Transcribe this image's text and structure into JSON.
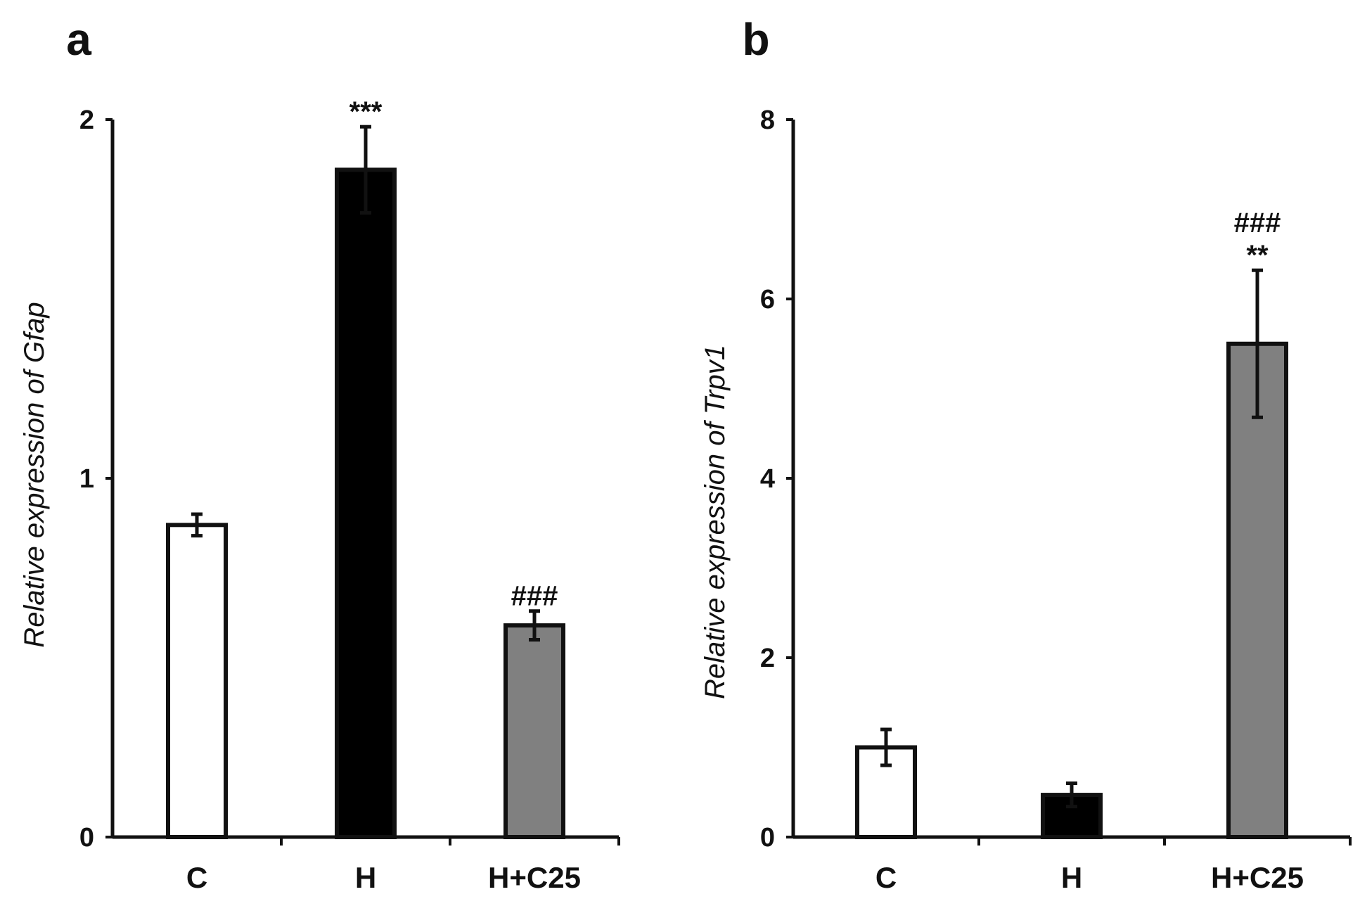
{
  "chart_data": [
    {
      "type": "bar",
      "panel_label": "a",
      "categories": [
        "C",
        "H",
        "H+C25"
      ],
      "values": [
        0.87,
        1.86,
        0.59
      ],
      "errors": [
        0.03,
        0.12,
        0.04
      ],
      "significance": [
        "",
        "***",
        "###"
      ],
      "bar_colors": [
        "#ffffff",
        "#000000",
        "#808080"
      ],
      "ylabel": "Relative expression of Gfap",
      "ylim": [
        0,
        2
      ],
      "yticks": [
        0,
        1,
        2
      ],
      "ytick_labels": [
        "0",
        "1",
        "2"
      ],
      "grid": false,
      "legend": "none"
    },
    {
      "type": "bar",
      "panel_label": "b",
      "categories": [
        "C",
        "H",
        "H+C25"
      ],
      "values": [
        1.0,
        0.47,
        5.5
      ],
      "errors": [
        0.2,
        0.13,
        0.82
      ],
      "significance": [
        "",
        "",
        "###\n**"
      ],
      "bar_colors": [
        "#ffffff",
        "#000000",
        "#808080"
      ],
      "ylabel": "Relative expression of Trpv1",
      "ylim": [
        0,
        8
      ],
      "yticks": [
        0,
        2,
        4,
        6,
        8
      ],
      "ytick_labels": [
        "0",
        "2",
        "4",
        "6",
        "8"
      ],
      "grid": false,
      "legend": "none"
    }
  ]
}
